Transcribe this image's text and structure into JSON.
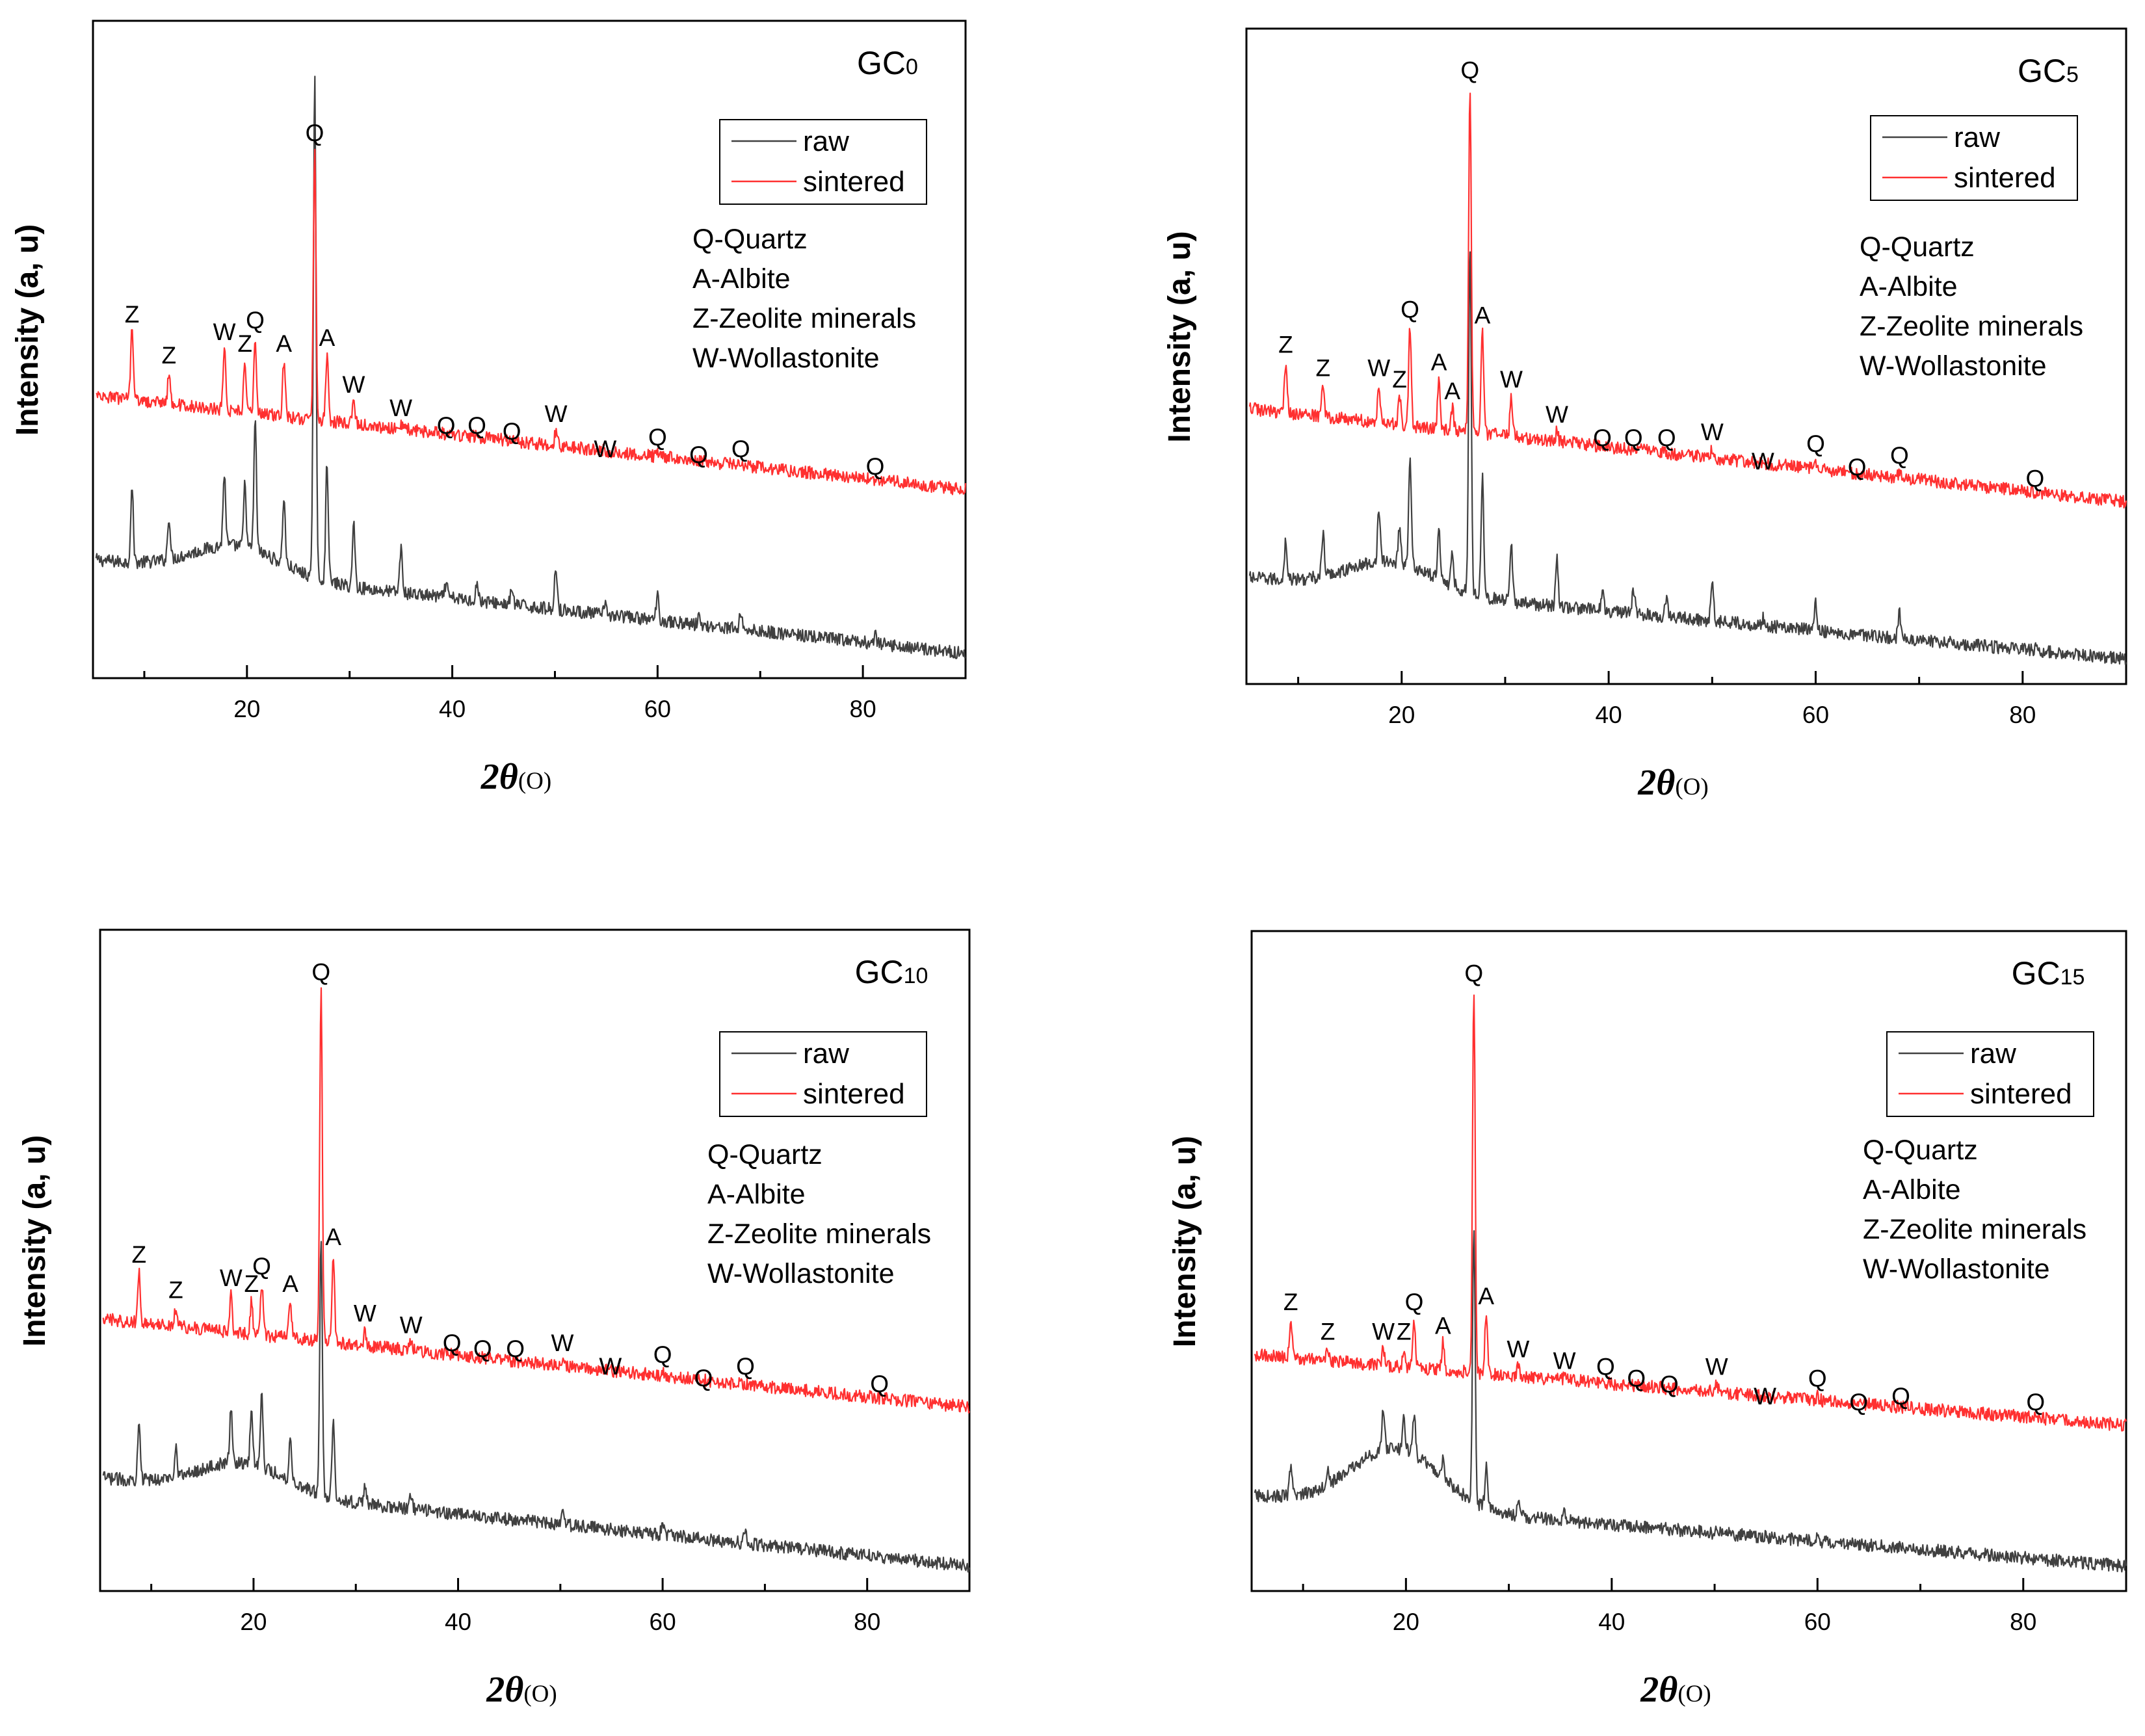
{
  "chart_data": [
    {
      "type": "line",
      "title": "GC0",
      "title_main": "GC",
      "title_sub": "0",
      "xlabel_main": "2θ",
      "xlabel_unit": "(O)",
      "ylabel": "Intensity (a, u)",
      "xlim": [
        5,
        90
      ],
      "xticks": [
        20,
        40,
        60,
        80
      ],
      "y_ticks_shown": false,
      "legend_position": "top-right",
      "series": [
        {
          "name": "raw",
          "color": "#404040",
          "baseline": 0.18,
          "baseline_end": 0.02
        },
        {
          "name": "sintered",
          "color": "#ff3030",
          "baseline": 0.46,
          "baseline_end": 0.3
        }
      ],
      "peaks": [
        {
          "two_theta": 8.8,
          "raw": 0.3,
          "sintered": 0.57,
          "label": "Z"
        },
        {
          "two_theta": 12.4,
          "raw": 0.24,
          "sintered": 0.5,
          "label": "Z"
        },
        {
          "two_theta": 17.8,
          "raw": 0.28,
          "sintered": 0.54,
          "label": "W"
        },
        {
          "two_theta": 19.8,
          "raw": 0.26,
          "sintered": 0.52,
          "label": "Z"
        },
        {
          "two_theta": 20.8,
          "raw": 0.37,
          "sintered": 0.56,
          "label": "Q"
        },
        {
          "two_theta": 23.6,
          "raw": 0.26,
          "sintered": 0.52,
          "label": "A"
        },
        {
          "two_theta": 26.6,
          "raw": 1.0,
          "sintered": 0.88,
          "label": "Q"
        },
        {
          "two_theta": 27.8,
          "raw": 0.34,
          "sintered": 0.53,
          "label": "A"
        },
        {
          "two_theta": 30.4,
          "raw": 0.24,
          "sintered": 0.45,
          "label": "W"
        },
        {
          "two_theta": 35.0,
          "raw": 0.2,
          "sintered": 0.41,
          "label": "W"
        },
        {
          "two_theta": 39.4,
          "raw": 0.14,
          "sintered": 0.38,
          "label": "Q"
        },
        {
          "two_theta": 42.4,
          "raw": 0.14,
          "sintered": 0.38,
          "label": "Q"
        },
        {
          "two_theta": 45.8,
          "raw": 0.13,
          "sintered": 0.37,
          "label": "Q"
        },
        {
          "two_theta": 50.1,
          "raw": 0.17,
          "sintered": 0.4,
          "label": "W"
        },
        {
          "two_theta": 54.9,
          "raw": 0.1,
          "sintered": 0.34,
          "label": "W"
        },
        {
          "two_theta": 60.0,
          "raw": 0.12,
          "sintered": 0.36,
          "label": "Q"
        },
        {
          "two_theta": 64.0,
          "raw": 0.08,
          "sintered": 0.33,
          "label": "Q"
        },
        {
          "two_theta": 68.1,
          "raw": 0.09,
          "sintered": 0.34,
          "label": "Q"
        },
        {
          "two_theta": 81.2,
          "raw": 0.05,
          "sintered": 0.31,
          "label": "Q"
        }
      ],
      "legend_entries": [
        "raw",
        "sintered"
      ],
      "phase_legend": [
        "Q-Quartz",
        "A-Albite",
        "Z-Zeolite minerals",
        "W-Wollastonite"
      ]
    },
    {
      "type": "line",
      "title": "GC5",
      "title_main": "GC",
      "title_sub": "5",
      "xlabel_main": "2θ",
      "xlabel_unit": "(O)",
      "ylabel": "Intensity (a, u)",
      "xlim": [
        5,
        90
      ],
      "xticks": [
        20,
        40,
        60,
        80
      ],
      "y_ticks_shown": false,
      "legend_position": "top-right",
      "series": [
        {
          "name": "raw",
          "color": "#404040",
          "baseline": 0.16,
          "baseline_end": 0.02
        },
        {
          "name": "sintered",
          "color": "#ff3030",
          "baseline": 0.45,
          "baseline_end": 0.29
        }
      ],
      "peaks": [
        {
          "two_theta": 8.8,
          "raw": 0.22,
          "sintered": 0.53,
          "label": "Z"
        },
        {
          "two_theta": 12.4,
          "raw": 0.22,
          "sintered": 0.49,
          "label": "Z"
        },
        {
          "two_theta": 17.8,
          "raw": 0.23,
          "sintered": 0.49,
          "label": "W"
        },
        {
          "two_theta": 19.8,
          "raw": 0.2,
          "sintered": 0.47,
          "label": "Z"
        },
        {
          "two_theta": 20.8,
          "raw": 0.32,
          "sintered": 0.59,
          "label": "Q"
        },
        {
          "two_theta": 23.6,
          "raw": 0.22,
          "sintered": 0.5,
          "label": "A"
        },
        {
          "two_theta": 24.9,
          "raw": 0.18,
          "sintered": 0.45,
          "label": "A"
        },
        {
          "two_theta": 26.6,
          "raw": 0.72,
          "sintered": 1.0,
          "label": "Q"
        },
        {
          "two_theta": 27.8,
          "raw": 0.33,
          "sintered": 0.58,
          "label": "A"
        },
        {
          "two_theta": 30.6,
          "raw": 0.21,
          "sintered": 0.47,
          "label": "W"
        },
        {
          "two_theta": 35.0,
          "raw": 0.19,
          "sintered": 0.41,
          "label": "W"
        },
        {
          "two_theta": 39.4,
          "raw": 0.14,
          "sintered": 0.37,
          "label": "Q"
        },
        {
          "two_theta": 42.4,
          "raw": 0.14,
          "sintered": 0.37,
          "label": "Q"
        },
        {
          "two_theta": 45.6,
          "raw": 0.13,
          "sintered": 0.37,
          "label": "Q"
        },
        {
          "two_theta": 50.0,
          "raw": 0.16,
          "sintered": 0.38,
          "label": "W"
        },
        {
          "two_theta": 54.9,
          "raw": 0.09,
          "sintered": 0.33,
          "label": "W"
        },
        {
          "two_theta": 60.0,
          "raw": 0.12,
          "sintered": 0.36,
          "label": "Q"
        },
        {
          "two_theta": 64.0,
          "raw": 0.07,
          "sintered": 0.32,
          "label": "Q"
        },
        {
          "two_theta": 68.1,
          "raw": 0.1,
          "sintered": 0.34,
          "label": "Q"
        },
        {
          "two_theta": 81.2,
          "raw": 0.04,
          "sintered": 0.3,
          "label": "Q"
        }
      ],
      "legend_entries": [
        "raw",
        "sintered"
      ],
      "phase_legend": [
        "Q-Quartz",
        "A-Albite",
        "Z-Zeolite minerals",
        "W-Wollastonite"
      ]
    },
    {
      "type": "line",
      "title": "GC10",
      "title_main": "GC",
      "title_sub": "10",
      "xlabel_main": "2θ",
      "xlabel_unit": "(O)",
      "ylabel": "Intensity (a, u)",
      "xlim": [
        5,
        90
      ],
      "xticks": [
        20,
        40,
        60,
        80
      ],
      "y_ticks_shown": false,
      "legend_position": "top-right",
      "series": [
        {
          "name": "raw",
          "color": "#404040",
          "baseline": 0.17,
          "baseline_end": 0.02
        },
        {
          "name": "sintered",
          "color": "#ff3030",
          "baseline": 0.44,
          "baseline_end": 0.29
        }
      ],
      "peaks": [
        {
          "two_theta": 8.8,
          "raw": 0.27,
          "sintered": 0.52,
          "label": "Z"
        },
        {
          "two_theta": 12.4,
          "raw": 0.21,
          "sintered": 0.46,
          "label": "Z"
        },
        {
          "two_theta": 17.8,
          "raw": 0.24,
          "sintered": 0.48,
          "label": "W"
        },
        {
          "two_theta": 19.8,
          "raw": 0.24,
          "sintered": 0.47,
          "label": "Z"
        },
        {
          "two_theta": 20.8,
          "raw": 0.27,
          "sintered": 0.5,
          "label": "Q"
        },
        {
          "two_theta": 23.6,
          "raw": 0.21,
          "sintered": 0.47,
          "label": "A"
        },
        {
          "two_theta": 26.6,
          "raw": 0.56,
          "sintered": 1.0,
          "label": "Q"
        },
        {
          "two_theta": 27.8,
          "raw": 0.27,
          "sintered": 0.55,
          "label": "A"
        },
        {
          "two_theta": 30.9,
          "raw": 0.16,
          "sintered": 0.42,
          "label": "W"
        },
        {
          "two_theta": 35.4,
          "raw": 0.14,
          "sintered": 0.4,
          "label": "W"
        },
        {
          "two_theta": 39.4,
          "raw": 0.11,
          "sintered": 0.37,
          "label": "Q"
        },
        {
          "two_theta": 42.4,
          "raw": 0.11,
          "sintered": 0.36,
          "label": "Q"
        },
        {
          "two_theta": 45.6,
          "raw": 0.1,
          "sintered": 0.36,
          "label": "Q"
        },
        {
          "two_theta": 50.2,
          "raw": 0.11,
          "sintered": 0.37,
          "label": "W"
        },
        {
          "two_theta": 54.9,
          "raw": 0.07,
          "sintered": 0.33,
          "label": "W"
        },
        {
          "two_theta": 60.0,
          "raw": 0.09,
          "sintered": 0.35,
          "label": "Q"
        },
        {
          "two_theta": 64.0,
          "raw": 0.06,
          "sintered": 0.31,
          "label": "Q"
        },
        {
          "two_theta": 68.1,
          "raw": 0.08,
          "sintered": 0.33,
          "label": "Q"
        },
        {
          "two_theta": 81.2,
          "raw": 0.03,
          "sintered": 0.3,
          "label": "Q"
        }
      ],
      "legend_entries": [
        "raw",
        "sintered"
      ],
      "phase_legend": [
        "Q-Quartz",
        "A-Albite",
        "Z-Zeolite minerals",
        "W-Wollastonite"
      ]
    },
    {
      "type": "line",
      "title": "GC15",
      "title_main": "GC",
      "title_sub": "15",
      "xlabel_main": "2θ",
      "xlabel_unit": "(O)",
      "ylabel": "Intensity (a, u)",
      "xlim": [
        5,
        90
      ],
      "xticks": [
        20,
        40,
        60,
        80
      ],
      "y_ticks_shown": false,
      "legend_position": "top-right",
      "series": [
        {
          "name": "raw",
          "color": "#404040",
          "baseline": 0.14,
          "baseline_end": 0.02
        },
        {
          "name": "sintered",
          "color": "#ff3030",
          "baseline": 0.38,
          "baseline_end": 0.26
        }
      ],
      "peaks": [
        {
          "two_theta": 8.8,
          "raw": 0.18,
          "sintered": 0.44,
          "label": "Z"
        },
        {
          "two_theta": 12.4,
          "raw": 0.16,
          "sintered": 0.39,
          "label": "Z"
        },
        {
          "two_theta": 17.8,
          "raw": 0.19,
          "sintered": 0.39,
          "label": "W"
        },
        {
          "two_theta": 19.8,
          "raw": 0.18,
          "sintered": 0.39,
          "label": "Z"
        },
        {
          "two_theta": 20.8,
          "raw": 0.19,
          "sintered": 0.44,
          "label": "Q"
        },
        {
          "two_theta": 23.6,
          "raw": 0.15,
          "sintered": 0.4,
          "label": "A"
        },
        {
          "two_theta": 26.6,
          "raw": 0.58,
          "sintered": 1.0,
          "label": "Q"
        },
        {
          "two_theta": 27.8,
          "raw": 0.18,
          "sintered": 0.45,
          "label": "A"
        },
        {
          "two_theta": 30.9,
          "raw": 0.13,
          "sintered": 0.36,
          "label": "W"
        },
        {
          "two_theta": 35.4,
          "raw": 0.11,
          "sintered": 0.34,
          "label": "W"
        },
        {
          "two_theta": 39.4,
          "raw": 0.08,
          "sintered": 0.33,
          "label": "Q"
        },
        {
          "two_theta": 42.4,
          "raw": 0.08,
          "sintered": 0.31,
          "label": "Q"
        },
        {
          "two_theta": 45.6,
          "raw": 0.07,
          "sintered": 0.3,
          "label": "Q"
        },
        {
          "two_theta": 50.2,
          "raw": 0.08,
          "sintered": 0.33,
          "label": "W"
        },
        {
          "two_theta": 54.9,
          "raw": 0.05,
          "sintered": 0.28,
          "label": "W"
        },
        {
          "two_theta": 60.0,
          "raw": 0.07,
          "sintered": 0.31,
          "label": "Q"
        },
        {
          "two_theta": 64.0,
          "raw": 0.04,
          "sintered": 0.27,
          "label": "Q"
        },
        {
          "two_theta": 68.1,
          "raw": 0.05,
          "sintered": 0.28,
          "label": "Q"
        },
        {
          "two_theta": 81.2,
          "raw": 0.02,
          "sintered": 0.27,
          "label": "Q"
        }
      ],
      "legend_entries": [
        "raw",
        "sintered"
      ],
      "phase_legend": [
        "Q-Quartz",
        "A-Albite",
        "Z-Zeolite minerals",
        "W-Wollastonite"
      ]
    }
  ]
}
